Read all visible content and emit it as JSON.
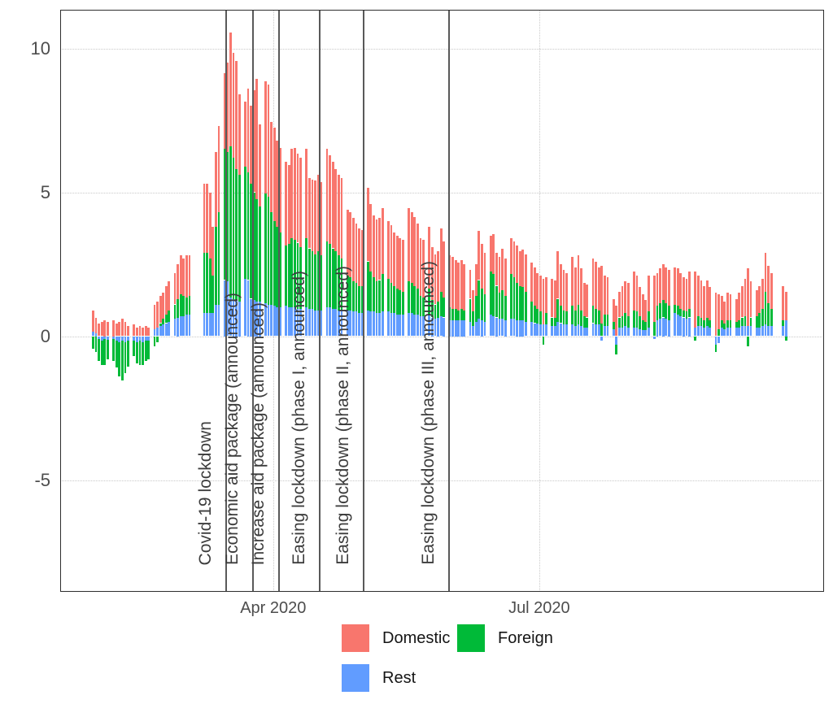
{
  "chart_data": {
    "type": "bar",
    "stacked": true,
    "title": "",
    "xlabel": "",
    "ylabel": "",
    "y_axis": {
      "ticks": [
        {
          "value": 10,
          "label": "10"
        },
        {
          "value": 5,
          "label": "5"
        },
        {
          "value": 0,
          "label": "0"
        },
        {
          "value": -5,
          "label": "-5"
        }
      ],
      "range": [
        -8.8,
        11.3
      ],
      "gridlines": "dotted"
    },
    "x_axis": {
      "unit": "day index from first bar (daily data, Jan 30 2020 = 0)",
      "ticks": [
        {
          "label": "Apr 2020",
          "day": 62
        },
        {
          "label": "Jul 2020",
          "day": 153
        }
      ]
    },
    "legend": [
      {
        "name": "domestic",
        "label": "Domestic",
        "color": "#F8766D"
      },
      {
        "name": "foreign",
        "label": "Foreign",
        "color": "#00BA38"
      },
      {
        "name": "rest",
        "label": "Rest",
        "color": "#619CFF"
      }
    ],
    "colors": {
      "domestic": "#F8766D",
      "foreign": "#00BA38",
      "rest": "#619CFF"
    },
    "stack_order_bottom_to_top": [
      "rest",
      "foreign",
      "domestic"
    ],
    "bar_value_order": [
      "domestic",
      "foreign",
      "rest"
    ],
    "events": [
      {
        "label": "Covid-19 lockdown",
        "day": 46
      },
      {
        "label": "Economic aid package (announced)",
        "day": 55
      },
      {
        "label": "Increase aid package (announced)",
        "day": 64
      },
      {
        "label": "Easing lockdown (phase I, announced)",
        "day": 78
      },
      {
        "label": "Easing lockdown (phase II, announced)",
        "day": 93
      },
      {
        "label": "Easing lockdown (phase III, announced)",
        "day": 122
      }
    ],
    "weeks": [
      {
        "start": 0,
        "bars": [
          [
            0.75,
            -0.45,
            0.15
          ],
          [
            0.55,
            -0.55,
            0.1
          ],
          [
            0.45,
            -0.75,
            -0.1
          ],
          [
            0.5,
            -0.85,
            -0.15
          ],
          [
            0.55,
            -0.9,
            -0.1
          ],
          [
            0.5,
            -0.7,
            -0.12
          ]
        ]
      },
      {
        "start": 7,
        "bars": [
          [
            0.55,
            -0.75,
            -0.1
          ],
          [
            0.45,
            -0.95,
            -0.15
          ],
          [
            0.5,
            -1.2,
            -0.2
          ],
          [
            0.6,
            -1.4,
            -0.15
          ],
          [
            0.5,
            -1.1,
            -0.2
          ],
          [
            0.35,
            -0.9,
            -0.15
          ]
        ]
      },
      {
        "start": 14,
        "bars": [
          [
            0.4,
            -0.55,
            -0.15
          ],
          [
            0.3,
            -0.75,
            -0.2
          ],
          [
            0.35,
            -0.85,
            -0.15
          ],
          [
            0.3,
            -0.8,
            -0.2
          ],
          [
            0.35,
            -0.7,
            -0.15
          ],
          [
            0.3,
            -0.65,
            -0.15
          ]
        ]
      },
      {
        "start": 21,
        "bars": [
          [
            0.85,
            -0.35,
            0.25
          ],
          [
            0.9,
            -0.2,
            0.3
          ],
          [
            0.95,
            0.1,
            0.35
          ],
          [
            0.9,
            0.2,
            0.4
          ],
          [
            1.0,
            0.3,
            0.45
          ],
          [
            1.0,
            0.4,
            0.5
          ]
        ]
      },
      {
        "start": 28,
        "bars": [
          [
            1.1,
            0.5,
            0.6
          ],
          [
            1.2,
            0.65,
            0.65
          ],
          [
            1.35,
            0.75,
            0.7
          ],
          [
            1.3,
            0.7,
            0.7
          ],
          [
            1.45,
            0.6,
            0.75
          ],
          [
            1.4,
            0.65,
            0.75
          ]
        ]
      },
      {
        "start": 38,
        "bars": [
          [
            2.4,
            2.1,
            0.8
          ],
          [
            2.4,
            2.1,
            0.8
          ],
          [
            2.3,
            1.9,
            0.8
          ],
          [
            1.7,
            1.3,
            0.8
          ],
          [
            2.6,
            2.7,
            1.1
          ],
          [
            3.0,
            3.2,
            1.1
          ]
        ]
      },
      {
        "start": 45,
        "bars": [
          [
            2.65,
            4.55,
            1.95
          ],
          [
            3.1,
            4.5,
            1.9
          ],
          [
            3.95,
            5.25,
            1.35
          ],
          [
            3.65,
            4.9,
            1.3
          ],
          [
            3.75,
            4.55,
            1.25
          ],
          [
            2.8,
            4.4,
            1.2
          ]
        ]
      },
      {
        "start": 52,
        "bars": [
          [
            2.25,
            3.9,
            2.0
          ],
          [
            2.9,
            3.75,
            1.95
          ],
          [
            2.7,
            4.0,
            1.3
          ],
          [
            3.55,
            3.75,
            1.25
          ],
          [
            4.2,
            3.55,
            1.2
          ],
          [
            2.85,
            3.3,
            1.2
          ]
        ]
      },
      {
        "start": 59,
        "bars": [
          [
            3.9,
            3.8,
            1.15
          ],
          [
            3.9,
            3.75,
            1.1
          ],
          [
            3.15,
            3.2,
            1.1
          ],
          [
            3.25,
            2.95,
            1.05
          ],
          [
            3.0,
            2.8,
            1.0
          ],
          [
            2.95,
            2.6,
            1.0
          ]
        ]
      },
      {
        "start": 66,
        "bars": [
          [
            2.9,
            2.1,
            1.05
          ],
          [
            2.75,
            2.2,
            1.0
          ],
          [
            3.1,
            2.4,
            1.0
          ],
          [
            3.2,
            2.35,
            1.0
          ],
          [
            3.1,
            2.3,
            0.95
          ],
          [
            3.1,
            2.15,
            0.95
          ]
        ]
      },
      {
        "start": 73,
        "bars": [
          [
            3.1,
            2.4,
            1.0
          ],
          [
            2.45,
            2.1,
            0.95
          ],
          [
            2.5,
            2.0,
            0.95
          ],
          [
            2.55,
            1.95,
            0.9
          ],
          [
            2.65,
            2.05,
            0.9
          ],
          [
            2.55,
            1.9,
            0.9
          ]
        ]
      },
      {
        "start": 80,
        "bars": [
          [
            3.2,
            2.3,
            1.0
          ],
          [
            3.1,
            2.2,
            1.0
          ],
          [
            3.0,
            2.1,
            0.95
          ],
          [
            2.85,
            2.0,
            0.95
          ],
          [
            2.8,
            1.9,
            0.9
          ],
          [
            2.8,
            1.8,
            0.9
          ]
        ]
      },
      {
        "start": 87,
        "bars": [
          [
            2.3,
            1.2,
            0.9
          ],
          [
            2.25,
            1.15,
            0.9
          ],
          [
            2.2,
            1.05,
            0.85
          ],
          [
            2.05,
            1.0,
            0.85
          ],
          [
            2.0,
            0.95,
            0.8
          ],
          [
            1.95,
            0.95,
            0.8
          ]
        ]
      },
      {
        "start": 94,
        "bars": [
          [
            2.55,
            1.7,
            0.9
          ],
          [
            2.35,
            1.4,
            0.85
          ],
          [
            2.15,
            1.2,
            0.85
          ],
          [
            2.15,
            1.1,
            0.8
          ],
          [
            2.15,
            1.15,
            0.8
          ],
          [
            2.3,
            1.3,
            0.85
          ]
        ]
      },
      {
        "start": 101,
        "bars": [
          [
            2.0,
            1.15,
            0.85
          ],
          [
            2.0,
            1.05,
            0.8
          ],
          [
            1.85,
            0.95,
            0.8
          ],
          [
            1.85,
            0.9,
            0.75
          ],
          [
            1.8,
            0.85,
            0.75
          ],
          [
            1.8,
            0.8,
            0.75
          ]
        ]
      },
      {
        "start": 108,
        "bars": [
          [
            2.55,
            1.1,
            0.8
          ],
          [
            2.45,
            1.05,
            0.8
          ],
          [
            2.4,
            1.0,
            0.75
          ],
          [
            2.25,
            0.9,
            0.75
          ],
          [
            2.0,
            0.7,
            0.7
          ],
          [
            2.0,
            0.65,
            0.7
          ]
        ]
      },
      {
        "start": 115,
        "bars": [
          [
            2.15,
            0.9,
            0.75
          ],
          [
            1.85,
            0.6,
            0.65
          ],
          [
            1.75,
            0.5,
            0.6
          ],
          [
            1.75,
            0.55,
            0.65
          ],
          [
            2.2,
            0.85,
            0.7
          ],
          [
            1.95,
            0.7,
            0.65
          ]
        ]
      },
      {
        "start": 122,
        "bars": [
          [
            1.8,
            0.45,
            0.55
          ],
          [
            1.8,
            0.4,
            0.55
          ],
          [
            1.7,
            0.4,
            0.55
          ],
          [
            1.65,
            0.35,
            0.55
          ],
          [
            1.7,
            0.4,
            0.55
          ],
          [
            1.6,
            0.35,
            0.55
          ]
        ]
      },
      {
        "start": 129,
        "bars": [
          [
            1.0,
            0.8,
            0.5
          ],
          [
            0.75,
            0.5,
            0.35
          ],
          [
            1.1,
            0.9,
            0.5
          ],
          [
            1.7,
            1.35,
            0.6
          ],
          [
            1.55,
            1.1,
            0.55
          ],
          [
            1.45,
            0.95,
            0.5
          ]
        ]
      },
      {
        "start": 136,
        "bars": [
          [
            1.25,
            1.5,
            0.75
          ],
          [
            1.4,
            1.45,
            0.7
          ],
          [
            1.15,
            1.1,
            0.65
          ],
          [
            1.25,
            0.9,
            0.6
          ],
          [
            1.45,
            1.0,
            0.6
          ],
          [
            1.3,
            0.85,
            0.55
          ]
        ]
      },
      {
        "start": 143,
        "bars": [
          [
            1.25,
            1.55,
            0.6
          ],
          [
            1.25,
            1.45,
            0.6
          ],
          [
            1.3,
            1.3,
            0.55
          ],
          [
            1.2,
            1.2,
            0.55
          ],
          [
            1.3,
            1.15,
            0.55
          ],
          [
            1.3,
            1.05,
            0.5
          ]
        ]
      },
      {
        "start": 150,
        "bars": [
          [
            1.35,
            0.7,
            0.5
          ],
          [
            1.35,
            0.6,
            0.45
          ],
          [
            1.25,
            0.5,
            0.45
          ],
          [
            1.25,
            0.45,
            0.4
          ],
          [
            1.6,
            -0.3,
            0.4
          ],
          [
            1.25,
            0.4,
            0.4
          ]
        ]
      },
      {
        "start": 157,
        "bars": [
          [
            1.35,
            0.3,
            0.35
          ],
          [
            1.3,
            0.3,
            0.35
          ],
          [
            1.65,
            0.8,
            0.5
          ],
          [
            1.45,
            0.6,
            0.45
          ],
          [
            1.4,
            0.5,
            0.4
          ],
          [
            1.35,
            0.45,
            0.4
          ]
        ]
      },
      {
        "start": 164,
        "bars": [
          [
            1.7,
            0.65,
            0.4
          ],
          [
            1.5,
            0.55,
            0.35
          ],
          [
            1.7,
            0.7,
            0.4
          ],
          [
            1.45,
            0.55,
            0.35
          ],
          [
            1.15,
            0.4,
            0.3
          ],
          [
            1.15,
            0.35,
            0.3
          ]
        ]
      },
      {
        "start": 171,
        "bars": [
          [
            1.65,
            0.6,
            0.45
          ],
          [
            1.65,
            0.55,
            0.4
          ],
          [
            1.5,
            0.5,
            0.4
          ],
          [
            2.0,
            0.45,
            -0.15
          ],
          [
            1.35,
            0.4,
            0.35
          ],
          [
            1.3,
            0.4,
            0.35
          ]
        ]
      },
      {
        "start": 178,
        "bars": [
          [
            0.8,
            0.25,
            0.25
          ],
          [
            1.05,
            -0.35,
            -0.3
          ],
          [
            0.9,
            0.35,
            0.3
          ],
          [
            1.05,
            0.4,
            0.3
          ],
          [
            1.1,
            0.45,
            0.35
          ],
          [
            1.15,
            0.4,
            0.3
          ]
        ]
      },
      {
        "start": 185,
        "bars": [
          [
            1.35,
            0.6,
            0.3
          ],
          [
            1.25,
            0.55,
            0.3
          ],
          [
            1.0,
            0.45,
            0.25
          ],
          [
            0.9,
            0.35,
            0.2
          ],
          [
            0.75,
            0.3,
            0.2
          ],
          [
            1.25,
            0.55,
            0.3
          ]
        ]
      },
      {
        "start": 192,
        "bars": [
          [
            1.6,
            0.5,
            -0.1
          ],
          [
            1.15,
            0.5,
            0.55
          ],
          [
            1.2,
            0.55,
            0.6
          ],
          [
            1.25,
            0.6,
            0.65
          ],
          [
            1.25,
            0.55,
            0.6
          ],
          [
            1.25,
            0.5,
            0.55
          ]
        ]
      },
      {
        "start": 199,
        "bars": [
          [
            1.3,
            0.3,
            0.8
          ],
          [
            1.3,
            0.3,
            0.75
          ],
          [
            1.25,
            0.25,
            0.7
          ],
          [
            1.15,
            0.25,
            0.65
          ],
          [
            1.15,
            0.25,
            0.6
          ],
          [
            1.3,
            0.3,
            0.65
          ]
        ]
      },
      {
        "start": 206,
        "bars": [
          [
            1.95,
            -0.15,
            0.3
          ],
          [
            1.4,
            0.35,
            0.35
          ],
          [
            1.3,
            0.3,
            0.35
          ],
          [
            1.2,
            0.25,
            0.3
          ],
          [
            1.3,
            0.3,
            0.35
          ],
          [
            1.15,
            0.25,
            0.3
          ]
        ]
      },
      {
        "start": 213,
        "bars": [
          [
            1.5,
            -0.25,
            -0.3
          ],
          [
            1.2,
            0.25,
            -0.25
          ],
          [
            0.85,
            0.25,
            0.3
          ],
          [
            0.75,
            0.2,
            0.25
          ],
          [
            0.95,
            0.25,
            0.3
          ],
          [
            0.9,
            0.25,
            0.3
          ]
        ]
      },
      {
        "start": 220,
        "bars": [
          [
            0.8,
            0.2,
            0.3
          ],
          [
            0.95,
            0.25,
            0.3
          ],
          [
            1.1,
            0.3,
            0.35
          ],
          [
            1.3,
            0.35,
            0.35
          ],
          [
            2.0,
            -0.35,
            0.35
          ],
          [
            1.25,
            0.3,
            0.35
          ]
        ]
      },
      {
        "start": 227,
        "bars": [
          [
            0.9,
            0.4,
            0.3
          ],
          [
            0.95,
            0.5,
            0.3
          ],
          [
            1.05,
            0.6,
            0.35
          ],
          [
            1.35,
            1.15,
            0.4
          ],
          [
            1.3,
            0.8,
            0.35
          ],
          [
            1.25,
            0.6,
            0.35
          ]
        ]
      },
      {
        "start": 236,
        "bars": [
          [
            1.2,
            0.2,
            0.35
          ],
          [
            1.0,
            -0.15,
            0.55
          ]
        ]
      }
    ]
  }
}
